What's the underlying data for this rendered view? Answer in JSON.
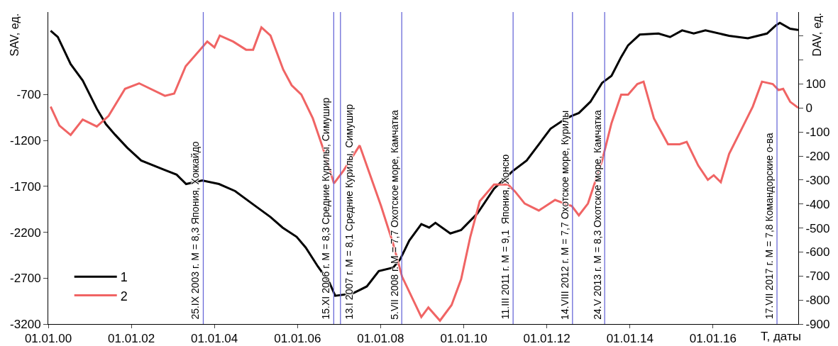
{
  "chart_data": {
    "type": "line",
    "xlabel": "T, даты",
    "ylabel": "SAV, ед.",
    "y2label": "DAV, ед.",
    "xlim": [
      "2000-01-01",
      "2018-01-20"
    ],
    "xticks": [
      {
        "value": "2000-01-01",
        "label": "01.01.00"
      },
      {
        "value": "2002-01-01",
        "label": "01.01.02"
      },
      {
        "value": "2004-01-01",
        "label": "01.01.04"
      },
      {
        "value": "2006-01-01",
        "label": "01.01.06"
      },
      {
        "value": "2008-01-01",
        "label": "01.01.08"
      },
      {
        "value": "2010-01-01",
        "label": "01.01.10"
      },
      {
        "value": "2012-01-01",
        "label": "01.01.12"
      },
      {
        "value": "2014-01-01",
        "label": "01.01.14"
      },
      {
        "value": "2016-01-01",
        "label": "01.01.16"
      }
    ],
    "ylim": [
      -3200,
      200
    ],
    "yticks": [
      -3200,
      -2700,
      -2200,
      -1700,
      -1200,
      -700
    ],
    "y2lim": [
      -900,
      400
    ],
    "y2ticks": [
      -900,
      -800,
      -700,
      -600,
      -500,
      -400,
      -300,
      -200,
      -100,
      0,
      100,
      {
        "value": 200,
        "label": null
      },
      {
        "value": 300,
        "label": null
      }
    ],
    "grid": false,
    "legend": "bottom left",
    "line_style": "solid",
    "marker": "none",
    "series": [
      {
        "name": "1",
        "color": "#000000",
        "x": [
          "2000-01-22",
          "2000-03-25",
          "2000-07-16",
          "2000-10-30",
          "2001-03-03",
          "2001-05-22",
          "2001-08-10",
          "2001-11-24",
          "2002-03-28",
          "2002-10-19",
          "2003-02-03",
          "2003-04-27",
          "2003-09-16",
          "2004-02-10",
          "2004-07-01",
          "2004-12-16",
          "2005-05-08",
          "2005-08-22",
          "2005-12-24",
          "2006-03-14",
          "2006-06-28",
          "2006-10-09",
          "2006-11-28",
          "2007-05-01",
          "2007-09-02",
          "2007-12-16",
          "2008-04-20",
          "2008-06-21",
          "2008-09-09",
          "2008-12-24",
          "2009-03-03",
          "2009-04-27",
          "2009-09-05",
          "2009-12-09",
          "2010-05-01",
          "2010-09-24",
          "2011-03-07",
          "2011-07-08",
          "2012-02-03",
          "2012-06-06",
          "2012-08-08",
          "2012-10-09",
          "2013-01-19",
          "2013-05-01",
          "2013-07-23",
          "2013-10-16",
          "2013-12-16",
          "2014-03-28",
          "2014-09-09",
          "2014-12-20",
          "2015-04-05",
          "2015-07-16",
          "2015-10-27",
          "2016-05-22",
          "2016-11-03",
          "2017-04-20",
          "2017-07-08",
          "2017-08-11",
          "2017-11-10",
          "2018-01-20"
        ],
        "values": [
          -3,
          -72,
          -367,
          -546,
          -854,
          -1021,
          -1136,
          -1277,
          -1418,
          -1521,
          -1572,
          -1674,
          -1636,
          -1674,
          -1751,
          -1905,
          -2034,
          -2149,
          -2250,
          -2367,
          -2572,
          -2751,
          -2892,
          -2867,
          -2790,
          -2623,
          -2585,
          -2495,
          -2290,
          -2111,
          -2149,
          -2098,
          -2213,
          -2175,
          -1995,
          -1726,
          -1534,
          -1418,
          -1072,
          -969,
          -931,
          -900,
          -777,
          -572,
          -495,
          -290,
          -162,
          -46,
          -34,
          -72,
          0,
          -34,
          0,
          -59,
          -85,
          -34,
          56,
          82,
          18,
          5
        ]
      },
      {
        "name": "2",
        "color": "#f06464",
        "axis": "y2",
        "x": [
          "2000-01-22",
          "2000-04-08",
          "2000-07-16",
          "2000-10-30",
          "2001-03-03",
          "2001-06-14",
          "2001-11-06",
          "2002-03-10",
          "2002-10-23",
          "2003-01-12",
          "2003-04-23",
          "2003-10-30",
          "2004-01-01",
          "2004-02-17",
          "2004-06-14",
          "2004-10-05",
          "2004-12-06",
          "2005-02-17",
          "2005-05-08",
          "2005-08-28",
          "2005-11-10",
          "2006-02-03",
          "2006-05-15",
          "2006-08-08",
          "2006-11-17",
          "2007-02-10",
          "2007-05-01",
          "2007-07-01",
          "2007-09-24",
          "2008-01-05",
          "2008-04-20",
          "2008-07-08",
          "2008-12-24",
          "2009-02-24",
          "2009-06-06",
          "2009-09-16",
          "2009-12-09",
          "2010-02-28",
          "2010-05-22",
          "2010-09-24",
          "2011-01-26",
          "2011-03-28",
          "2011-06-21",
          "2011-10-23",
          "2012-03-14",
          "2012-06-06",
          "2012-08-08",
          "2012-10-09",
          "2012-12-28",
          "2013-05-01",
          "2013-07-23",
          "2013-10-16",
          "2013-12-16",
          "2014-03-07",
          "2014-05-01",
          "2014-07-31",
          "2014-12-02",
          "2015-03-14",
          "2015-05-15",
          "2015-08-25",
          "2015-11-17",
          "2016-01-08",
          "2016-03-10",
          "2016-05-22",
          "2016-09-24",
          "2016-12-16",
          "2017-03-07",
          "2017-06-10",
          "2017-07-31",
          "2017-09-09",
          "2017-11-10",
          "2018-01-20"
        ],
        "values": [
          6,
          -73,
          -112,
          -48,
          -77,
          -33,
          80,
          103,
          51,
          60,
          174,
          277,
          253,
          302,
          277,
          243,
          243,
          336,
          302,
          160,
          95,
          56,
          -43,
          -161,
          -314,
          -260,
          -201,
          -156,
          -270,
          -408,
          -565,
          -703,
          -871,
          -831,
          -886,
          -821,
          -713,
          -536,
          -388,
          -319,
          -319,
          -348,
          -398,
          -427,
          -383,
          -398,
          -408,
          -447,
          -398,
          -220,
          -63,
          56,
          56,
          100,
          110,
          -43,
          -151,
          -151,
          -141,
          -240,
          -299,
          -280,
          -309,
          -191,
          -73,
          6,
          110,
          100,
          75,
          80,
          26,
          1
        ]
      }
    ],
    "ref_lines": [
      {
        "axis": "x",
        "value": "2003-09-25",
        "label": "25.IX 2003 г. M = 8,3 Япония, Хоккайдо",
        "color": "#6a6ad8"
      },
      {
        "axis": "x",
        "value": "2006-11-15",
        "label": "15.XI 2006 г. M = 8,3 Средние Курилы, Симушир",
        "color": "#6a6ad8"
      },
      {
        "axis": "x",
        "value": "2007-01-13",
        "label": "13.I 2007 г. M = 8,1 Средние Курилы, Симушир",
        "color": "#6a6ad8"
      },
      {
        "axis": "x",
        "value": "2008-07-05",
        "label": "5.VII 2008 г. M = 7,7 Охотское море, Камчатка",
        "color": "#6a6ad8"
      },
      {
        "axis": "x",
        "value": "2011-03-11",
        "label": "11.III 2011 г. M = 9,1  Япония, Хонсю",
        "color": "#6a6ad8"
      },
      {
        "axis": "x",
        "value": "2012-08-14",
        "label": "14.VIII 2012 г. M = 7,7 Охотское море, Курилы",
        "color": "#6a6ad8"
      },
      {
        "axis": "x",
        "value": "2013-05-24",
        "label": "24.V 2013 г. M = 8,3 Охотское море, Камчатка",
        "color": "#6a6ad8"
      },
      {
        "axis": "x",
        "value": "2017-07-17",
        "label": "17.VII 2017 г. M = 7,8 Командорские о-ва",
        "color": "#6a6ad8"
      }
    ]
  }
}
